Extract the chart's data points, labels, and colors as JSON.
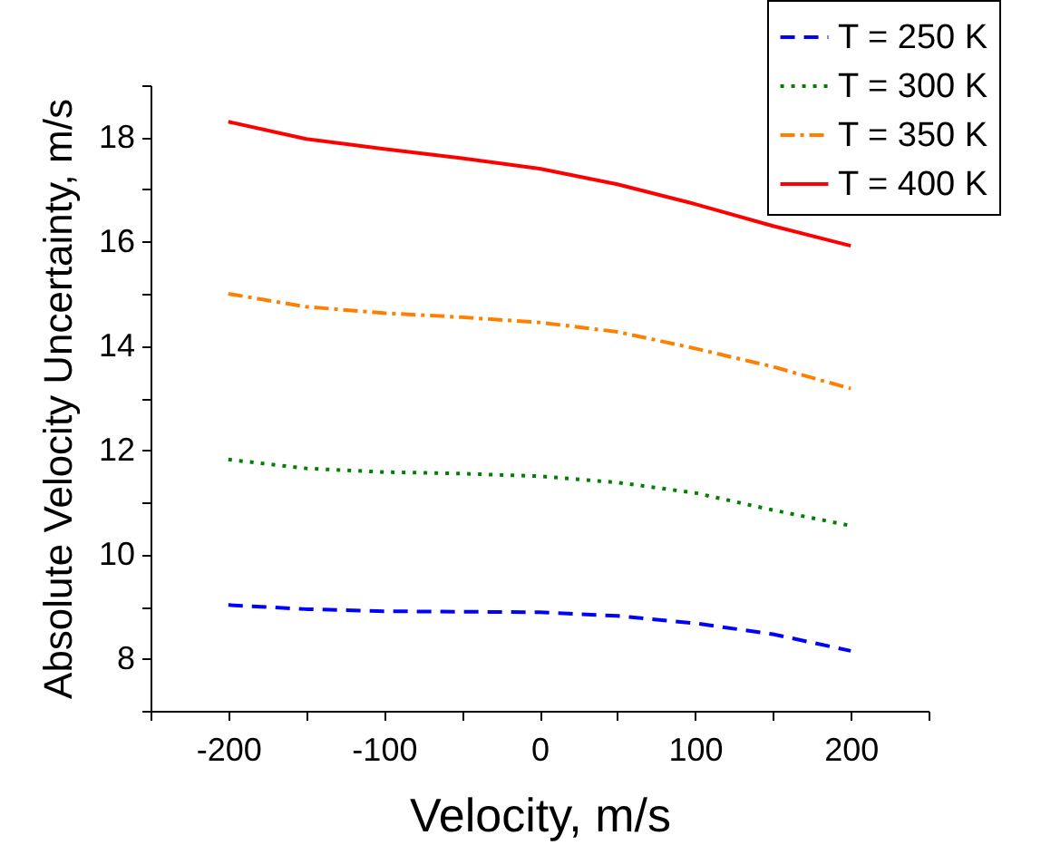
{
  "chart_data": {
    "type": "line",
    "xlabel": "Velocity, m/s",
    "ylabel": "Absolute Velocity Uncertainty, m/s",
    "x": [
      -200,
      -150,
      -100,
      -50,
      0,
      50,
      100,
      150,
      200
    ],
    "series": [
      {
        "name": "T = 250 K",
        "color": "#0000ff",
        "line_style": "dashed",
        "values": [
          9.03,
          8.95,
          8.91,
          8.9,
          8.89,
          8.82,
          8.68,
          8.47,
          8.15
        ]
      },
      {
        "name": "T = 300 K",
        "color": "#008000",
        "line_style": "dotted",
        "values": [
          11.82,
          11.65,
          11.58,
          11.55,
          11.5,
          11.38,
          11.18,
          10.85,
          10.55
        ]
      },
      {
        "name": "T = 350 K",
        "color": "#ff8000",
        "line_style": "dashdot",
        "values": [
          15.0,
          14.75,
          14.63,
          14.55,
          14.45,
          14.27,
          13.95,
          13.6,
          13.18
        ]
      },
      {
        "name": "T = 400 K",
        "color": "#ff0000",
        "line_style": "solid",
        "values": [
          18.3,
          17.97,
          17.78,
          17.6,
          17.4,
          17.1,
          16.72,
          16.3,
          15.92
        ]
      }
    ],
    "xlim": [
      -250,
      250
    ],
    "xticks": [
      {
        "value": -250,
        "label": null
      },
      -200,
      {
        "value": -150,
        "label": null
      },
      -100,
      {
        "value": -50,
        "label": null
      },
      0,
      {
        "value": 50,
        "label": null
      },
      100,
      {
        "value": 150,
        "label": null
      },
      200,
      {
        "value": 250,
        "label": null
      }
    ],
    "ylim": [
      7,
      19
    ],
    "yticks": [
      {
        "value": 7,
        "label": null
      },
      8,
      {
        "value": 9,
        "label": null
      },
      10,
      {
        "value": 11,
        "label": null
      },
      12,
      {
        "value": 13,
        "label": null
      },
      14,
      {
        "value": 15,
        "label": null
      },
      16,
      {
        "value": 17,
        "label": null
      },
      18,
      {
        "value": 19,
        "label": null
      }
    ],
    "legend": "top right",
    "grid": false,
    "marker": "none"
  }
}
